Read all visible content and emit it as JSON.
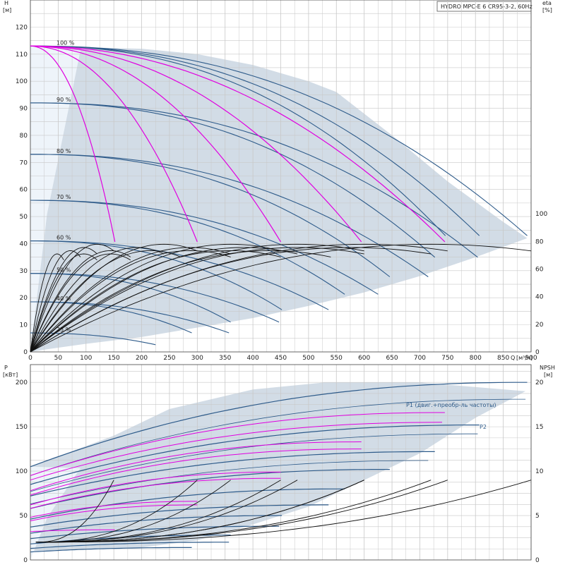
{
  "title": "HYDRO MPC-E 6 CR95-3-2, 60Hz",
  "colors": {
    "envelope": "#d2dce6",
    "envelope_light": "#eef4fa",
    "blue": "#2e5b8a",
    "magenta": "#e000e0",
    "black": "#111111",
    "grid": "#c8c8c8"
  },
  "chart_data": [
    {
      "type": "line",
      "panel": "head",
      "ylabel_left": "H",
      "yunit_left": "[м]",
      "ylabel_right": "eta",
      "yunit_right": "[%]",
      "xlabel": "Q",
      "xunit": "[м³/ч]",
      "xlim": [
        0,
        900
      ],
      "ylim": [
        0,
        130
      ],
      "yticks_left": [
        0,
        10,
        20,
        30,
        40,
        50,
        60,
        70,
        80,
        90,
        100,
        110,
        120
      ],
      "xticks": [
        0,
        50,
        100,
        150,
        200,
        250,
        300,
        350,
        400,
        450,
        500,
        550,
        600,
        650,
        700,
        750,
        800,
        850,
        900
      ],
      "yticks_right": [
        "0",
        "20",
        "40",
        "60",
        "80",
        "100"
      ],
      "yticks_right_pos": [
        0,
        10.2,
        20.4,
        30.6,
        40.8,
        51
      ],
      "eta_scale": 0.51,
      "speed_labels": [
        {
          "text": "100 %",
          "h": 113
        },
        {
          "text": "90 %",
          "h": 92
        },
        {
          "text": "80 %",
          "h": 73
        },
        {
          "text": "70 %",
          "h": 56
        },
        {
          "text": "60 %",
          "h": 41
        },
        {
          "text": "50 %",
          "h": 29
        },
        {
          "text": "40 %",
          "h": 18.5
        },
        {
          "text": "25 %",
          "h": 7
        }
      ],
      "envelope": [
        [
          0,
          113
        ],
        [
          200,
          112
        ],
        [
          300,
          110
        ],
        [
          400,
          106
        ],
        [
          500,
          100
        ],
        [
          550,
          96
        ],
        [
          650,
          80
        ],
        [
          750,
          63
        ],
        [
          850,
          48
        ],
        [
          893,
          42
        ],
        [
          800,
          35
        ],
        [
          700,
          28
        ],
        [
          600,
          22
        ],
        [
          500,
          17
        ],
        [
          400,
          12.5
        ],
        [
          300,
          9
        ],
        [
          200,
          5.5
        ],
        [
          100,
          3
        ],
        [
          30,
          1
        ],
        [
          0,
          0
        ]
      ],
      "series_head_blue": [
        {
          "n": 6,
          "s": 1.0,
          "h0": 113,
          "qmax": 893
        },
        {
          "n": 5,
          "s": 1.0,
          "h0": 113,
          "qmax": 807
        },
        {
          "n": 6,
          "s": 0.9,
          "h0": 92,
          "qmax": 804
        },
        {
          "n": 4,
          "s": 1.0,
          "h0": 113,
          "qmax": 746
        },
        {
          "n": 5,
          "s": 0.9,
          "h0": 92,
          "qmax": 727
        },
        {
          "n": 6,
          "s": 0.8,
          "h0": 73,
          "qmax": 715
        },
        {
          "n": 5,
          "s": 0.8,
          "h0": 73,
          "qmax": 646
        },
        {
          "n": 6,
          "s": 0.7,
          "h0": 56,
          "qmax": 625
        },
        {
          "n": 5,
          "s": 0.7,
          "h0": 56,
          "qmax": 565
        },
        {
          "n": 6,
          "s": 0.6,
          "h0": 41,
          "qmax": 536
        },
        {
          "n": 5,
          "s": 0.6,
          "h0": 41,
          "qmax": 452
        },
        {
          "n": 6,
          "s": 0.5,
          "h0": 29,
          "qmax": 447
        },
        {
          "n": 5,
          "s": 0.5,
          "h0": 29,
          "qmax": 360
        },
        {
          "n": 6,
          "s": 0.4,
          "h0": 18.5,
          "qmax": 357
        },
        {
          "n": 5,
          "s": 0.4,
          "h0": 18.5,
          "qmax": 290
        },
        {
          "n": 6,
          "s": 0.25,
          "h0": 7,
          "qmax": 225
        }
      ],
      "series_head_magenta": [
        {
          "n": 1,
          "qmax": 152
        },
        {
          "n": 2,
          "qmax": 300
        },
        {
          "n": 3,
          "qmax": 450
        },
        {
          "n": 4,
          "qmax": 595
        },
        {
          "n": 5,
          "qmax": 745
        }
      ],
      "series_eta_black": [
        {
          "n": 1,
          "s": 1.0
        },
        {
          "n": 2,
          "s": 1.0
        },
        {
          "n": 3,
          "s": 1.0
        },
        {
          "n": 4,
          "s": 1.0
        },
        {
          "n": 5,
          "s": 1.0
        },
        {
          "n": 6,
          "s": 1.0
        },
        {
          "n": 1,
          "s": 0.8
        },
        {
          "n": 2,
          "s": 0.8
        },
        {
          "n": 3,
          "s": 0.8
        },
        {
          "n": 4,
          "s": 0.8
        },
        {
          "n": 5,
          "s": 0.8
        },
        {
          "n": 6,
          "s": 0.8
        },
        {
          "n": 1,
          "s": 0.6
        },
        {
          "n": 2,
          "s": 0.6
        },
        {
          "n": 3,
          "s": 0.6
        },
        {
          "n": 4,
          "s": 0.6
        },
        {
          "n": 5,
          "s": 0.6
        },
        {
          "n": 6,
          "s": 0.6
        },
        {
          "n": 1,
          "s": 0.4
        },
        {
          "n": 2,
          "s": 0.4
        },
        {
          "n": 3,
          "s": 0.4
        }
      ]
    },
    {
      "type": "line",
      "panel": "power",
      "ylabel_left": "P",
      "yunit_left": "[кВт]",
      "ylabel_right": "NPSH",
      "yunit_right": "[м]",
      "xlim": [
        0,
        900
      ],
      "ylim": [
        0,
        220
      ],
      "yticks_left": [
        0,
        50,
        100,
        150,
        200
      ],
      "yticks_right": [
        "0",
        "5",
        "10",
        "15",
        "20"
      ],
      "yticks_right_pos": [
        0,
        50,
        100,
        150,
        200
      ],
      "legend_p1": "P1 (двиг.+преобр-ль частоты)",
      "legend_p2": "P2",
      "envelope": [
        [
          0,
          105
        ],
        [
          150,
          140
        ],
        [
          250,
          170
        ],
        [
          400,
          192
        ],
        [
          530,
          200
        ],
        [
          700,
          200
        ],
        [
          890,
          190
        ],
        [
          800,
          160
        ],
        [
          700,
          120
        ],
        [
          600,
          90
        ],
        [
          500,
          60
        ],
        [
          400,
          40
        ],
        [
          300,
          22
        ],
        [
          200,
          14
        ],
        [
          0,
          10
        ]
      ],
      "series_p1_blue": [
        {
          "p0": 105,
          "pm": 200,
          "qmax": 893
        },
        {
          "p0": 85,
          "pm": 152,
          "qmax": 807
        },
        {
          "p0": 72,
          "pm": 122,
          "qmax": 727
        },
        {
          "p0": 58,
          "pm": 102,
          "qmax": 646
        },
        {
          "p0": 46,
          "pm": 80,
          "qmax": 565
        },
        {
          "p0": 37,
          "pm": 62,
          "qmax": 536
        },
        {
          "p0": 30,
          "pm": 50,
          "qmax": 452
        },
        {
          "p0": 24,
          "pm": 38,
          "qmax": 447
        },
        {
          "p0": 18,
          "pm": 28,
          "qmax": 360
        },
        {
          "p0": 13,
          "pm": 20,
          "qmax": 357
        },
        {
          "p0": 9,
          "pm": 14,
          "qmax": 290
        }
      ],
      "series_p2_blue": [
        {
          "p0": 95,
          "pm": 181,
          "qmax": 890
        },
        {
          "p0": 77,
          "pm": 142,
          "qmax": 804
        },
        {
          "p0": 63,
          "pm": 112,
          "qmax": 715
        }
      ],
      "series_power_magenta": [
        {
          "p0": 95,
          "pm": 166,
          "qmax": 745
        },
        {
          "p0": 90,
          "pm": 155,
          "qmax": 740
        },
        {
          "p0": 78,
          "pm": 133,
          "qmax": 595
        },
        {
          "p0": 73,
          "pm": 125,
          "qmax": 595
        },
        {
          "p0": 62,
          "pm": 99,
          "qmax": 450
        },
        {
          "p0": 58,
          "pm": 92,
          "qmax": 450
        },
        {
          "p0": 48,
          "pm": 66,
          "qmax": 300
        },
        {
          "p0": 44,
          "pm": 62,
          "qmax": 300
        },
        {
          "p0": 32,
          "pm": 34,
          "qmax": 152
        }
      ],
      "series_npsh_black": [
        {
          "n": 1,
          "s": 1.0
        },
        {
          "n": 2,
          "s": 1.0
        },
        {
          "n": 3,
          "s": 1.0
        },
        {
          "n": 4,
          "s": 1.0
        },
        {
          "n": 5,
          "s": 1.0
        },
        {
          "n": 6,
          "s": 1.0
        },
        {
          "n": 3,
          "s": 0.8
        },
        {
          "n": 4,
          "s": 0.8
        },
        {
          "n": 5,
          "s": 0.8
        },
        {
          "n": 6,
          "s": 0.8
        }
      ]
    }
  ]
}
